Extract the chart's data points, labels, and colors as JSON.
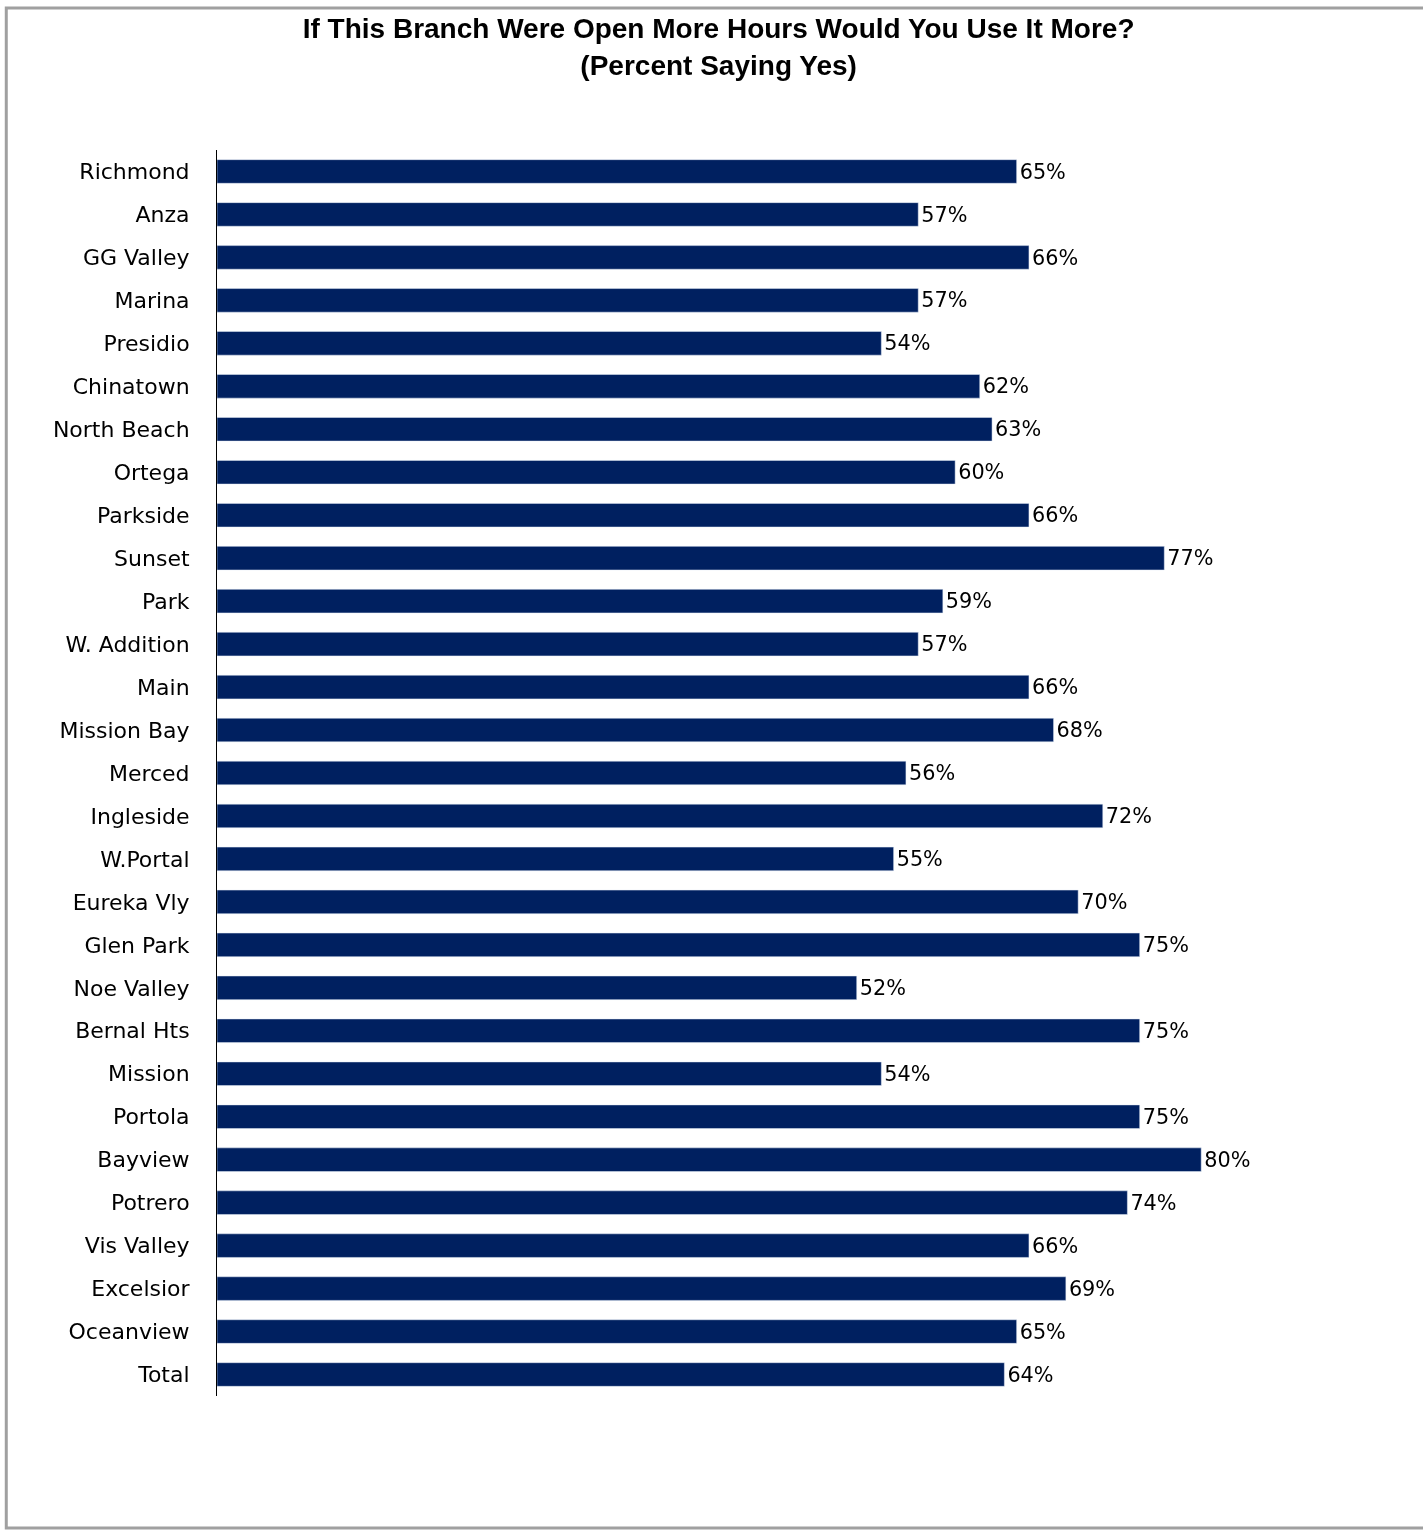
{
  "chart_data": {
    "type": "bar",
    "orientation": "horizontal",
    "title": "If This Branch Were Open More Hours Would You Use It More?\n(Percent Saying Yes)",
    "categories": [
      "Richmond",
      "Anza",
      "GG Valley",
      "Marina",
      "Presidio",
      "Chinatown",
      "North Beach",
      "Ortega",
      "Parkside",
      "Sunset",
      "Park",
      "W. Addition",
      "Main",
      "Mission Bay",
      "Merced",
      "Ingleside",
      "W.Portal",
      "Eureka Vly",
      "Glen Park",
      "Noe Valley",
      "Bernal Hts",
      "Mission",
      "Portola",
      "Bayview",
      "Potrero",
      "Vis Valley",
      "Excelsior",
      "Oceanview",
      "Total"
    ],
    "values": [
      65,
      57,
      66,
      57,
      54,
      62,
      63,
      60,
      66,
      77,
      59,
      57,
      66,
      68,
      56,
      72,
      55,
      70,
      75,
      52,
      75,
      54,
      75,
      80,
      74,
      66,
      69,
      65,
      64
    ],
    "value_labels": [
      "65%",
      "57%",
      "66%",
      "57%",
      "54%",
      "62%",
      "63%",
      "60%",
      "66%",
      "77%",
      "59%",
      "57%",
      "66%",
      "68%",
      "56%",
      "72%",
      "55%",
      "70%",
      "75%",
      "52%",
      "75%",
      "54%",
      "75%",
      "80%",
      "74%",
      "66%",
      "69%",
      "65%",
      "64%"
    ],
    "color": "#002060",
    "tick_labels": "y"
  }
}
